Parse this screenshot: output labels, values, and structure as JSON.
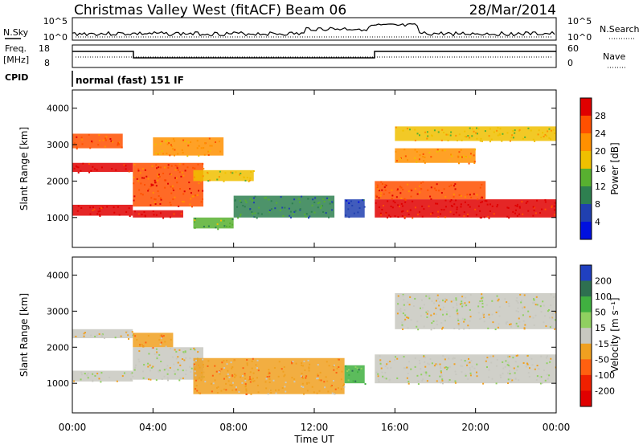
{
  "header": {
    "station": "Christmas Valley West (fitACF)",
    "beam": "Beam 06",
    "date": "28/Mar/2014"
  },
  "strip": {
    "nsky_label": "N.Sky",
    "nsky_ticks": [
      "10^5",
      "10^0"
    ],
    "nsearch_label": "N.Search",
    "nsearch_ticks": [
      "10^5",
      "10^0"
    ],
    "freq_label_1": "Freq.",
    "freq_label_2": "[MHz]",
    "freq_ticks": [
      "18",
      "8"
    ],
    "nave_label": "Nave",
    "nave_ticks": [
      "60",
      "0"
    ],
    "cpid_label": "CPID",
    "cpid_text": "normal (fast) 151 IF"
  },
  "chart_data": [
    {
      "type": "heatmap",
      "panel": "power",
      "ylabel": "Slant Range [km]",
      "y_ticks": [
        1000,
        2000,
        3000,
        4000
      ],
      "ylim": [
        180,
        4500
      ],
      "colorbar": {
        "label": "Power [dB]",
        "ticks": [
          "28",
          "24",
          "20",
          "16",
          "12",
          "8",
          "4"
        ],
        "colors": [
          "#e00000",
          "#ff5000",
          "#ff9000",
          "#f0c000",
          "#58b030",
          "#2e8050",
          "#2040b0",
          "#0010e0"
        ]
      },
      "bands": [
        {
          "t": [
            0.0,
            3.0
          ],
          "range": [
            1050,
            1350
          ],
          "level": 0
        },
        {
          "t": [
            0.0,
            3.0
          ],
          "range": [
            2250,
            2500
          ],
          "level": 0
        },
        {
          "t": [
            0.0,
            2.5
          ],
          "range": [
            2900,
            3300
          ],
          "level": 1
        },
        {
          "t": [
            3.0,
            5.5
          ],
          "range": [
            1000,
            1200
          ],
          "level": 0
        },
        {
          "t": [
            3.0,
            6.5
          ],
          "range": [
            1300,
            2500
          ],
          "level": 1
        },
        {
          "t": [
            4.0,
            7.5
          ],
          "range": [
            2700,
            3200
          ],
          "level": 2
        },
        {
          "t": [
            6.0,
            9.0
          ],
          "range": [
            2000,
            2300
          ],
          "level": 3
        },
        {
          "t": [
            6.0,
            8.0
          ],
          "range": [
            700,
            1000
          ],
          "level": 4
        },
        {
          "t": [
            8.0,
            13.0
          ],
          "range": [
            1000,
            1600
          ],
          "level": 5
        },
        {
          "t": [
            13.5,
            14.5
          ],
          "range": [
            1000,
            1500
          ],
          "level": 6
        },
        {
          "t": [
            15.0,
            24.0
          ],
          "range": [
            1000,
            1500
          ],
          "level": 0
        },
        {
          "t": [
            15.0,
            20.5
          ],
          "range": [
            1500,
            2000
          ],
          "level": 1
        },
        {
          "t": [
            16.0,
            20.0
          ],
          "range": [
            2500,
            2900
          ],
          "level": 2
        },
        {
          "t": [
            16.0,
            24.0
          ],
          "range": [
            3100,
            3500
          ],
          "level": 3
        }
      ]
    },
    {
      "type": "heatmap",
      "panel": "velocity",
      "ylabel": "Slant Range [km]",
      "xlabel": "Time UT",
      "x_ticks": [
        "00:00",
        "04:00",
        "08:00",
        "12:00",
        "16:00",
        "20:00",
        "00:00"
      ],
      "xlim": [
        0,
        24
      ],
      "y_ticks": [
        1000,
        2000,
        3000,
        4000
      ],
      "ylim": [
        180,
        4500
      ],
      "colorbar": {
        "label": "Velocity [m s⁻¹]",
        "ticks": [
          "200",
          "100",
          "50",
          "15",
          "-15",
          "-50",
          "-100",
          "-200"
        ],
        "colors": [
          "#2040c0",
          "#2e7050",
          "#40b040",
          "#90d060",
          "#c8c8c0",
          "#f0a020",
          "#ff6010",
          "#f02000",
          "#e00000"
        ]
      },
      "bands": [
        {
          "t": [
            0.0,
            3.0
          ],
          "range": [
            1050,
            1350
          ],
          "level": 4
        },
        {
          "t": [
            0.0,
            3.0
          ],
          "range": [
            2250,
            2500
          ],
          "level": 4
        },
        {
          "t": [
            3.0,
            6.5
          ],
          "range": [
            1100,
            2000
          ],
          "level": 4
        },
        {
          "t": [
            3.0,
            5.0
          ],
          "range": [
            2000,
            2400
          ],
          "level": 5
        },
        {
          "t": [
            6.0,
            13.5
          ],
          "range": [
            700,
            1700
          ],
          "level": 5
        },
        {
          "t": [
            13.5,
            14.5
          ],
          "range": [
            1000,
            1500
          ],
          "level": 2
        },
        {
          "t": [
            15.0,
            24.0
          ],
          "range": [
            1000,
            1800
          ],
          "level": 4
        },
        {
          "t": [
            16.0,
            24.0
          ],
          "range": [
            2500,
            3500
          ],
          "level": 4
        }
      ]
    }
  ]
}
